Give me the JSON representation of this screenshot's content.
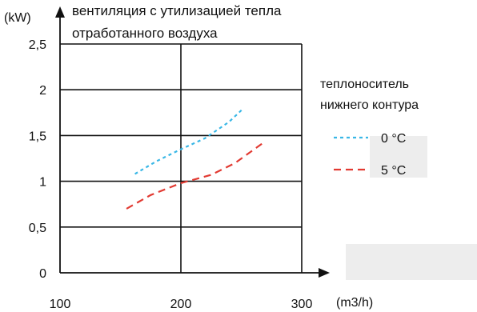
{
  "chart_data": {
    "type": "line",
    "title_lines": [
      "вентиляция с утилизацией тепла",
      "отработанного воздуха"
    ],
    "xlabel": "(m3/h)",
    "ylabel": "(kW)",
    "xlim": [
      100,
      300
    ],
    "ylim": [
      0,
      2.5
    ],
    "x_ticks": [
      {
        "value": 100,
        "label": "100"
      },
      {
        "value": 200,
        "label": "200"
      },
      {
        "value": 300,
        "label": "300"
      }
    ],
    "y_ticks": [
      {
        "value": 0,
        "label": "0"
      },
      {
        "value": 0.5,
        "label": "0,5"
      },
      {
        "value": 1,
        "label": "1"
      },
      {
        "value": 1.5,
        "label": "1,5"
      },
      {
        "value": 2,
        "label": "2"
      },
      {
        "value": 2.5,
        "label": "2,5"
      }
    ],
    "grid": true,
    "legend": {
      "title_lines": [
        "теплоноситель",
        "нижнего контура"
      ],
      "placement": "right"
    },
    "series": [
      {
        "name": "0 °C",
        "color": "#39b7e6",
        "dash": "dotted",
        "points": [
          [
            162,
            1.08
          ],
          [
            180,
            1.22
          ],
          [
            200,
            1.35
          ],
          [
            220,
            1.47
          ],
          [
            240,
            1.65
          ],
          [
            252,
            1.8
          ]
        ]
      },
      {
        "name": "5 °C",
        "color": "#e23a32",
        "dash": "dashed",
        "points": [
          [
            155,
            0.7
          ],
          [
            175,
            0.85
          ],
          [
            200,
            0.98
          ],
          [
            225,
            1.07
          ],
          [
            245,
            1.2
          ],
          [
            268,
            1.42
          ]
        ]
      }
    ]
  }
}
